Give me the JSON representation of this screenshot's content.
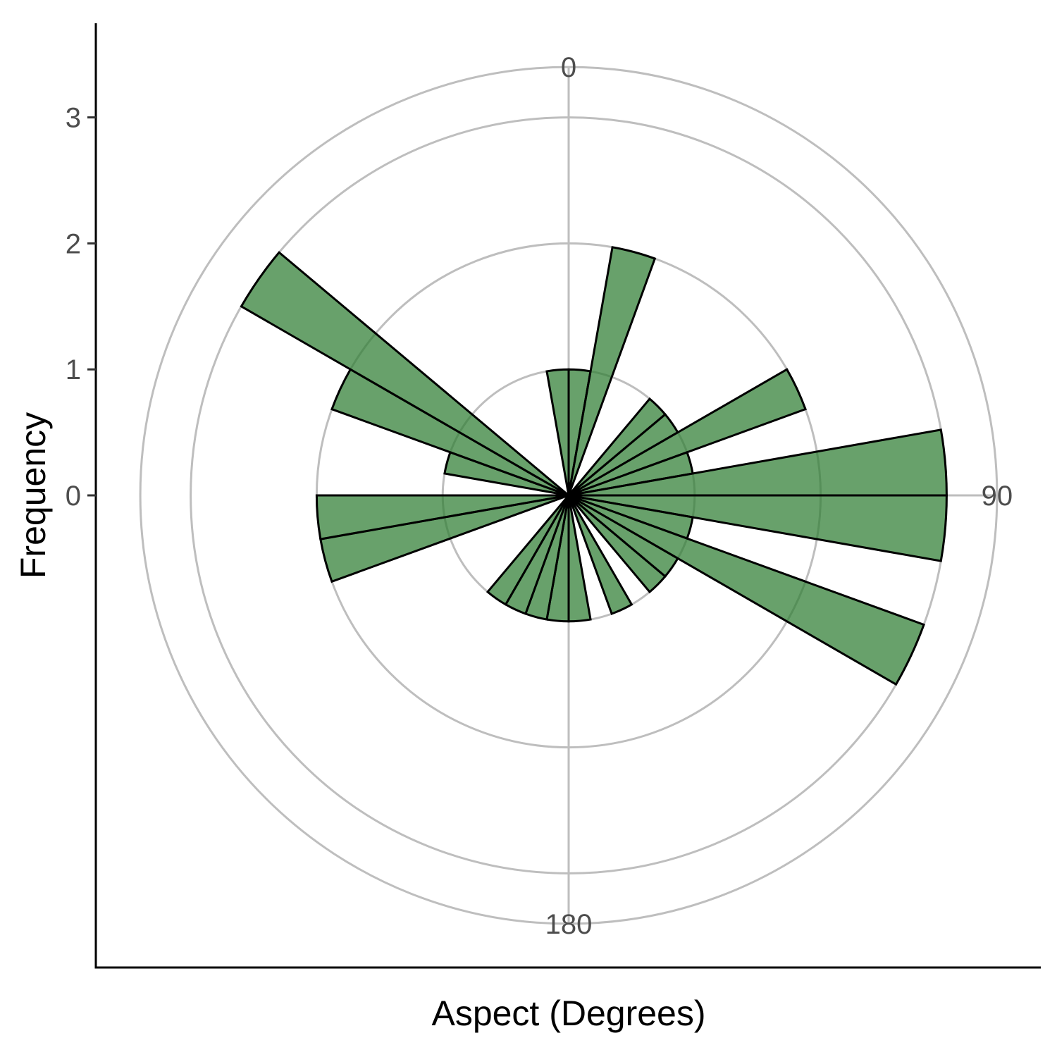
{
  "chart_data": {
    "type": "bar",
    "coord": "polar",
    "title": "",
    "xlabel": "Aspect (Degrees)",
    "ylabel": "Frequency",
    "theta_range": [
      0,
      360
    ],
    "theta_direction": "clockwise",
    "theta_zero": "top",
    "theta_ticks": [
      "0",
      "90",
      "180"
    ],
    "y_ticks": [
      "0",
      "1",
      "2",
      "3"
    ],
    "grid_radii": [
      1,
      2,
      3,
      3.4
    ],
    "r_max": 3.4,
    "bin_width": 10,
    "bars": [
      {
        "start": 350,
        "end": 360,
        "value": 1.0
      },
      {
        "start": 0,
        "end": 10,
        "value": 1.0
      },
      {
        "start": 10,
        "end": 20,
        "value": 2.0
      },
      {
        "start": 40,
        "end": 50,
        "value": 1.0
      },
      {
        "start": 50,
        "end": 60,
        "value": 1.0
      },
      {
        "start": 60,
        "end": 70,
        "value": 2.0
      },
      {
        "start": 70,
        "end": 80,
        "value": 1.0
      },
      {
        "start": 80,
        "end": 90,
        "value": 3.0
      },
      {
        "start": 90,
        "end": 100,
        "value": 3.0
      },
      {
        "start": 100,
        "end": 110,
        "value": 1.0
      },
      {
        "start": 110,
        "end": 120,
        "value": 3.0
      },
      {
        "start": 120,
        "end": 130,
        "value": 1.0
      },
      {
        "start": 130,
        "end": 140,
        "value": 1.0
      },
      {
        "start": 150,
        "end": 160,
        "value": 1.0
      },
      {
        "start": 170,
        "end": 180,
        "value": 1.0
      },
      {
        "start": 180,
        "end": 190,
        "value": 1.0
      },
      {
        "start": 190,
        "end": 200,
        "value": 1.0
      },
      {
        "start": 200,
        "end": 210,
        "value": 1.0
      },
      {
        "start": 210,
        "end": 220,
        "value": 1.0
      },
      {
        "start": 250,
        "end": 260,
        "value": 2.0
      },
      {
        "start": 260,
        "end": 270,
        "value": 2.0
      },
      {
        "start": 280,
        "end": 290,
        "value": 1.0
      },
      {
        "start": 290,
        "end": 300,
        "value": 2.0
      },
      {
        "start": 300,
        "end": 310,
        "value": 3.0
      }
    ],
    "bar_fill": "#2e7d32",
    "bar_fill_opacity": 0.72,
    "bar_stroke": "#000000",
    "grid_color": "#bebebe",
    "grid": true,
    "legend": "none"
  }
}
